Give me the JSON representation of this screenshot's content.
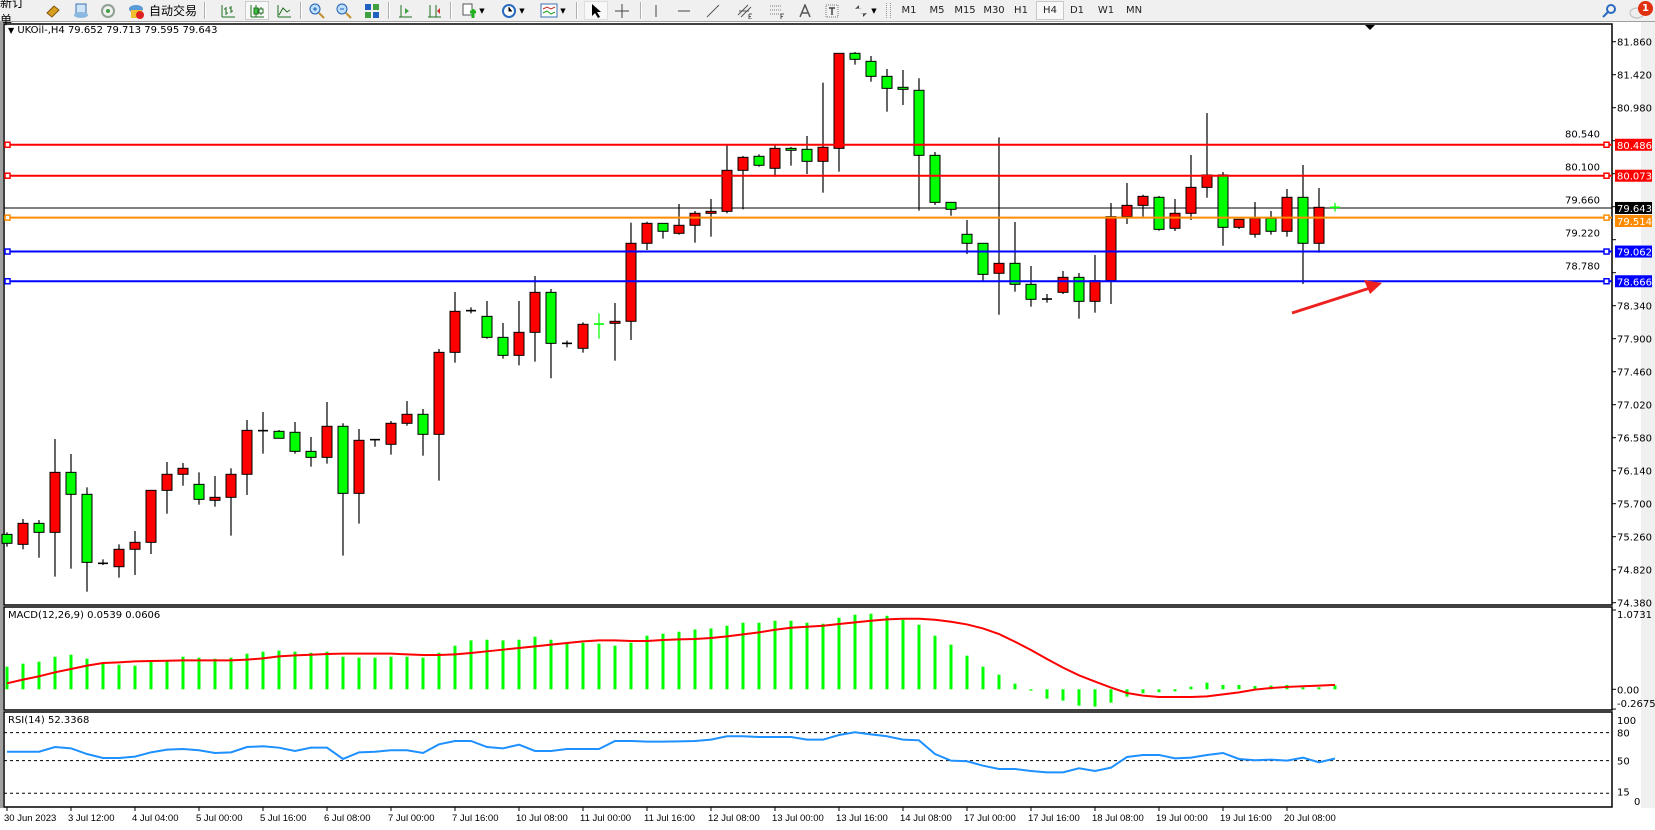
{
  "toolbar": {
    "new_order": "新订单",
    "auto_trading": "自动交易",
    "icons": [
      "market-watch-icon",
      "data-window-icon",
      "signals-icon",
      "auto-trading-icon",
      "bar-chart-icon",
      "candlestick-icon",
      "line-chart-icon",
      "zoom-in-icon",
      "zoom-out-icon",
      "tile-windows-icon",
      "chart-shift-icon",
      "autoscroll-icon",
      "new-chart-icon",
      "periodicity-icon",
      "templates-icon",
      "cursor-icon",
      "crosshair-icon",
      "vertical-line-icon",
      "horizontal-line-icon",
      "trendline-icon",
      "equidistant-channel-icon",
      "fibonacci-icon",
      "text-icon",
      "text-label-icon",
      "arrows-icon"
    ],
    "timeframes": [
      "M1",
      "M5",
      "M15",
      "M30",
      "H1",
      "H4",
      "D1",
      "W1",
      "MN"
    ],
    "active_timeframe": "H4",
    "notification_count": "1"
  },
  "chart": {
    "title": "UKOil-,H4  79.652 79.713 79.595 79.643",
    "macd_title": "MACD(12,26,9) 0.0539 0.0606",
    "rsi_title": "RSI(14) 52.3368"
  },
  "chart_data": {
    "type": "candlestick",
    "symbol": "UKOil-",
    "timeframe": "H4",
    "up_color": "#ff0000",
    "down_color": "#00ff00",
    "ylim": [
      74.38,
      81.86
    ],
    "y_ticks": [
      "81.860",
      "81.420",
      "80.980",
      "80.540",
      "80.100",
      "79.660",
      "79.220",
      "78.780",
      "78.340",
      "77.900",
      "77.460",
      "77.020",
      "76.580",
      "76.140",
      "75.700",
      "75.260",
      "74.820",
      "74.380"
    ],
    "x_tick_labels": [
      "30 Jun 2023",
      "3 Jul 12:00",
      "4 Jul 04:00",
      "5 Jul 00:00",
      "5 Jul 16:00",
      "6 Jul 08:00",
      "7 Jul 00:00",
      "7 Jul 16:00",
      "10 Jul 08:00",
      "11 Jul 00:00",
      "11 Jul 16:00",
      "12 Jul 08:00",
      "13 Jul 00:00",
      "13 Jul 16:00",
      "14 Jul 08:00",
      "17 Jul 00:00",
      "17 Jul 16:00",
      "18 Jul 08:00",
      "19 Jul 00:00",
      "19 Jul 16:00",
      "20 Jul 08:00"
    ],
    "x_tick_every_bars": 4,
    "ohlc": [
      [
        75.291,
        75.318,
        75.127,
        75.172
      ],
      [
        75.158,
        75.496,
        75.092,
        75.438
      ],
      [
        75.438,
        75.482,
        74.98,
        75.318
      ],
      [
        75.318,
        76.563,
        74.727,
        76.118
      ],
      [
        76.118,
        76.363,
        74.834,
        75.825
      ],
      [
        75.825,
        75.918,
        74.527,
        74.918
      ],
      [
        74.905,
        74.958,
        74.882,
        74.905
      ],
      [
        74.86,
        75.158,
        74.714,
        75.092
      ],
      [
        75.092,
        75.336,
        74.749,
        75.185
      ],
      [
        75.185,
        75.878,
        75.029,
        75.878
      ],
      [
        75.878,
        76.256,
        75.567,
        76.092
      ],
      [
        76.092,
        76.243,
        75.94,
        76.172
      ],
      [
        75.958,
        76.118,
        75.687,
        75.758
      ],
      [
        75.745,
        76.069,
        75.66,
        75.785
      ],
      [
        75.785,
        76.172,
        75.274,
        76.092
      ],
      [
        76.092,
        76.816,
        75.816,
        76.678
      ],
      [
        76.674,
        76.923,
        76.367,
        76.674
      ],
      [
        76.665,
        76.683,
        76.572,
        76.572
      ],
      [
        76.652,
        76.789,
        76.367,
        76.398
      ],
      [
        76.398,
        76.59,
        76.194,
        76.318
      ],
      [
        76.318,
        77.056,
        76.234,
        76.732
      ],
      [
        76.732,
        76.772,
        75.007,
        75.838
      ],
      [
        75.838,
        76.696,
        75.434,
        76.545
      ],
      [
        76.554,
        76.554,
        76.46,
        76.554
      ],
      [
        76.492,
        76.803,
        76.354,
        76.772
      ],
      [
        76.772,
        77.069,
        76.74,
        76.892
      ],
      [
        76.892,
        76.963,
        76.34,
        76.625
      ],
      [
        76.625,
        77.763,
        76.007,
        77.718
      ],
      [
        77.718,
        78.523,
        77.58,
        78.265
      ],
      [
        78.274,
        78.318,
        78.238,
        78.274
      ],
      [
        78.198,
        78.403,
        77.9,
        77.918
      ],
      [
        77.918,
        78.11,
        77.634,
        77.678
      ],
      [
        77.678,
        78.403,
        77.545,
        77.985
      ],
      [
        77.985,
        78.736,
        77.594,
        78.518
      ],
      [
        78.518,
        78.563,
        77.372,
        77.838
      ],
      [
        77.838,
        77.874,
        77.785,
        77.838
      ],
      [
        77.772,
        78.118,
        77.714,
        78.092
      ],
      [
        78.095,
        78.238,
        77.9,
        78.09
      ],
      [
        78.105,
        78.376,
        77.607,
        78.132
      ],
      [
        78.132,
        79.447,
        77.883,
        79.172
      ],
      [
        79.172,
        79.46,
        79.083,
        79.438
      ],
      [
        79.438,
        79.438,
        79.234,
        79.332
      ],
      [
        79.305,
        79.696,
        79.287,
        79.412
      ],
      [
        79.412,
        79.603,
        79.18,
        79.572
      ],
      [
        79.572,
        79.763,
        79.26,
        79.598
      ],
      [
        79.598,
        80.487,
        79.572,
        80.145
      ],
      [
        80.145,
        80.336,
        79.625,
        80.318
      ],
      [
        80.332,
        80.358,
        80.194,
        80.212
      ],
      [
        80.172,
        80.483,
        80.06,
        80.438
      ],
      [
        80.438,
        80.456,
        80.207,
        80.412
      ],
      [
        80.425,
        80.603,
        80.096,
        80.265
      ],
      [
        80.265,
        81.314,
        79.847,
        80.452
      ],
      [
        80.438,
        81.705,
        80.127,
        81.705
      ],
      [
        81.705,
        81.723,
        81.554,
        81.625
      ],
      [
        81.598,
        81.669,
        81.327,
        81.398
      ],
      [
        81.398,
        81.496,
        80.927,
        81.238
      ],
      [
        81.252,
        81.483,
        81.016,
        81.225
      ],
      [
        81.212,
        81.372,
        79.607,
        80.345
      ],
      [
        80.345,
        80.39,
        79.683,
        79.718
      ],
      [
        79.718,
        79.718,
        79.54,
        79.625
      ],
      [
        79.292,
        79.483,
        79.029,
        79.172
      ],
      [
        79.172,
        79.172,
        78.674,
        78.758
      ],
      [
        78.772,
        80.585,
        78.22,
        78.905
      ],
      [
        78.905,
        79.456,
        78.527,
        78.625
      ],
      [
        78.625,
        78.869,
        78.327,
        78.425
      ],
      [
        78.429,
        78.496,
        78.38,
        78.429
      ],
      [
        78.518,
        78.803,
        78.496,
        78.718
      ],
      [
        78.718,
        78.776,
        78.167,
        78.398
      ],
      [
        78.398,
        79.016,
        78.247,
        78.674
      ],
      [
        78.674,
        79.709,
        78.363,
        79.527
      ],
      [
        79.527,
        79.976,
        79.429,
        79.678
      ],
      [
        79.678,
        79.82,
        79.527,
        79.798
      ],
      [
        79.785,
        79.803,
        79.34,
        79.358
      ],
      [
        79.372,
        79.763,
        79.336,
        79.572
      ],
      [
        79.572,
        80.349,
        79.483,
        79.918
      ],
      [
        79.918,
        80.909,
        79.78,
        80.083
      ],
      [
        80.083,
        80.123,
        79.14,
        79.385
      ],
      [
        79.385,
        79.492,
        79.363,
        79.492
      ],
      [
        79.292,
        79.723,
        79.247,
        79.505
      ],
      [
        79.505,
        79.603,
        79.287,
        79.332
      ],
      [
        79.332,
        79.896,
        79.26,
        79.785
      ],
      [
        79.785,
        80.216,
        78.629,
        79.172
      ],
      [
        79.172,
        79.909,
        79.047,
        79.652
      ],
      [
        79.652,
        79.713,
        79.595,
        79.643
      ]
    ],
    "current_price": {
      "value": 79.643,
      "label": "79.643",
      "color": "#000000"
    },
    "horizontal_lines": [
      {
        "value": 80.486,
        "label": "80.486",
        "color": "#ff0000"
      },
      {
        "value": 80.073,
        "label": "80.073",
        "color": "#ff0000"
      },
      {
        "value": 79.514,
        "label": "79.514",
        "color": "#ff8c00"
      },
      {
        "value": 79.062,
        "label": "79.062",
        "color": "#0000ff"
      },
      {
        "value": 78.666,
        "label": "78.666",
        "color": "#0000ff"
      }
    ],
    "annotation_arrow": {
      "color": "#ee2020",
      "points_to": 78.666
    },
    "macd": {
      "params": "12,26,9",
      "ylim": [
        -0.2675,
        1.0731
      ],
      "y_tick_labels": [
        "1.0731",
        "0.00",
        "-0.2675"
      ],
      "histogram_color": "#00ff00",
      "signal_color": "#ff0000",
      "histogram": [
        0.306,
        0.347,
        0.374,
        0.441,
        0.468,
        0.414,
        0.356,
        0.333,
        0.32,
        0.374,
        0.383,
        0.441,
        0.428,
        0.414,
        0.428,
        0.482,
        0.509,
        0.523,
        0.509,
        0.495,
        0.509,
        0.441,
        0.428,
        0.428,
        0.441,
        0.441,
        0.428,
        0.495,
        0.59,
        0.662,
        0.671,
        0.662,
        0.671,
        0.712,
        0.671,
        0.63,
        0.63,
        0.617,
        0.59,
        0.63,
        0.725,
        0.752,
        0.779,
        0.809,
        0.823,
        0.86,
        0.901,
        0.901,
        0.928,
        0.928,
        0.901,
        0.887,
        0.968,
        1.009,
        1.023,
        0.995,
        0.941,
        0.874,
        0.725,
        0.604,
        0.455,
        0.306,
        0.198,
        0.077,
        -0.018,
        -0.126,
        -0.153,
        -0.221,
        -0.234,
        -0.18,
        -0.099,
        -0.054,
        -0.04,
        -0.027,
        0.036,
        0.09,
        0.059,
        0.059,
        0.045,
        0.05,
        0.059,
        0.027,
        0.027,
        0.0539
      ],
      "signal": [
        0.081,
        0.131,
        0.176,
        0.23,
        0.275,
        0.32,
        0.356,
        0.365,
        0.378,
        0.383,
        0.387,
        0.392,
        0.392,
        0.392,
        0.392,
        0.401,
        0.419,
        0.446,
        0.459,
        0.468,
        0.477,
        0.482,
        0.482,
        0.482,
        0.482,
        0.473,
        0.464,
        0.464,
        0.473,
        0.491,
        0.514,
        0.536,
        0.559,
        0.581,
        0.604,
        0.626,
        0.649,
        0.662,
        0.662,
        0.653,
        0.653,
        0.667,
        0.676,
        0.68,
        0.694,
        0.716,
        0.743,
        0.77,
        0.806,
        0.833,
        0.847,
        0.86,
        0.883,
        0.905,
        0.928,
        0.946,
        0.955,
        0.955,
        0.941,
        0.914,
        0.878,
        0.824,
        0.748,
        0.644,
        0.532,
        0.41,
        0.293,
        0.189,
        0.104,
        0.023,
        -0.05,
        -0.086,
        -0.104,
        -0.104,
        -0.104,
        -0.095,
        -0.068,
        -0.041,
        -0.005,
        0.018,
        0.032,
        0.041,
        0.05,
        0.0606
      ]
    },
    "rsi": {
      "period": 14,
      "ylim": [
        0,
        100
      ],
      "levels": [
        80,
        50,
        15
      ],
      "y_tick_labels": [
        "100",
        "80",
        "50",
        "15",
        "0"
      ],
      "color": "#1e90ff",
      "values": [
        59.6,
        59.6,
        59.6,
        64.6,
        63.2,
        57.1,
        52.9,
        52.9,
        54.3,
        58.9,
        61.8,
        62.5,
        61.1,
        58.2,
        58.9,
        64.6,
        65.4,
        63.9,
        60.4,
        63.9,
        63.9,
        51.8,
        58.9,
        59.6,
        61.1,
        61.1,
        58.2,
        67.5,
        71.1,
        71.1,
        64.6,
        63.2,
        67.1,
        60.4,
        60.4,
        62.5,
        62.5,
        62.5,
        71.1,
        71.1,
        70.4,
        70.4,
        70.7,
        71.1,
        72.5,
        76.1,
        76.1,
        75.4,
        75.4,
        75.4,
        72.5,
        72.5,
        77.5,
        80.4,
        78.2,
        76.1,
        72.5,
        71.8,
        57.1,
        50.0,
        49.3,
        44.6,
        41.1,
        41.1,
        38.9,
        37.5,
        37.5,
        41.8,
        38.9,
        42.5,
        53.9,
        56.1,
        56.1,
        52.5,
        53.2,
        56.1,
        58.2,
        51.8,
        50.4,
        51.1,
        50.0,
        53.2,
        48.2,
        52.3368
      ]
    }
  }
}
